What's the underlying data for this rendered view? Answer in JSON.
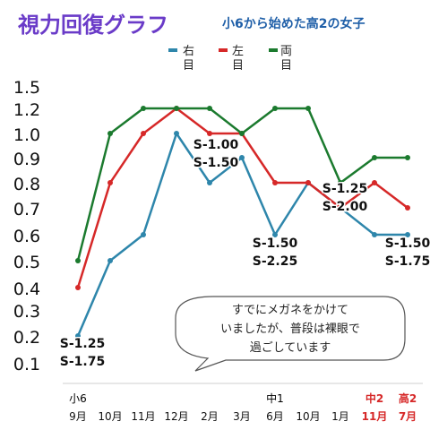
{
  "title": "視力回復グラフ",
  "subtitle": "小6から始めた高2の女子",
  "legend": {
    "right": {
      "label_line1": "右",
      "label_line2": "目",
      "color": "#2e86ab"
    },
    "left": {
      "label_line1": "左",
      "label_line2": "目",
      "color": "#d62828"
    },
    "both": {
      "label_line1": "両",
      "label_line2": "目",
      "color": "#1b7a2e"
    }
  },
  "speech_bubble": {
    "lines": [
      "すでにメガネをかけて",
      "いましたが、普段は裸眼で",
      "過ごしています"
    ]
  },
  "chart_data": {
    "type": "line",
    "title": "視力回復グラフ",
    "subtitle": "小6から始めた高2の女子",
    "xlabel": "",
    "ylabel": "",
    "ylim": [
      0.1,
      1.5
    ],
    "y_ticks": [
      "1.5",
      "1.2",
      "1.0",
      "0.9",
      "0.8",
      "0.7",
      "0.6",
      "0.5",
      "0.4",
      "0.3",
      "0.2",
      "0.1"
    ],
    "categories": [
      "9月",
      "10月",
      "11月",
      "12月",
      "2月",
      "3月",
      "6月",
      "10月",
      "1月",
      "11月",
      "7月"
    ],
    "category_groups": [
      {
        "label": "小6",
        "start_index": 0,
        "color": "#000000"
      },
      {
        "label": "中1",
        "start_index": 6,
        "color": "#000000"
      },
      {
        "label": "中2",
        "start_index": 9,
        "color": "#d62828"
      },
      {
        "label": "高2",
        "start_index": 10,
        "color": "#d62828"
      }
    ],
    "highlighted_categories": [
      9,
      10
    ],
    "highlight_color": "#d62828",
    "series": [
      {
        "name": "右目",
        "color": "#2e86ab",
        "values": [
          0.2,
          0.5,
          0.6,
          1.0,
          0.8,
          0.9,
          0.6,
          0.8,
          0.7,
          0.6,
          0.6
        ]
      },
      {
        "name": "左目",
        "color": "#d62828",
        "values": [
          0.4,
          0.8,
          1.0,
          1.2,
          1.0,
          1.0,
          0.8,
          0.8,
          0.7,
          0.8,
          0.7
        ]
      },
      {
        "name": "両目",
        "color": "#1b7a2e",
        "values": [
          0.5,
          1.0,
          1.2,
          1.2,
          1.2,
          1.0,
          1.2,
          1.2,
          0.8,
          0.9,
          0.9
        ]
      }
    ],
    "annotations": [
      {
        "lines": [
          "S-1.25",
          "S-1.75"
        ],
        "category_index": 0
      },
      {
        "lines": [
          "S-1.00",
          "S-1.50"
        ],
        "category_index": 4
      },
      {
        "lines": [
          "S-1.50",
          "S-2.25"
        ],
        "category_index": 6
      },
      {
        "lines": [
          "S-1.25",
          "S-2.00"
        ],
        "category_index": 8
      },
      {
        "lines": [
          "S-1.50",
          "S-1.75"
        ],
        "category_index": 10
      }
    ],
    "grid": false,
    "legend_position": "top"
  }
}
